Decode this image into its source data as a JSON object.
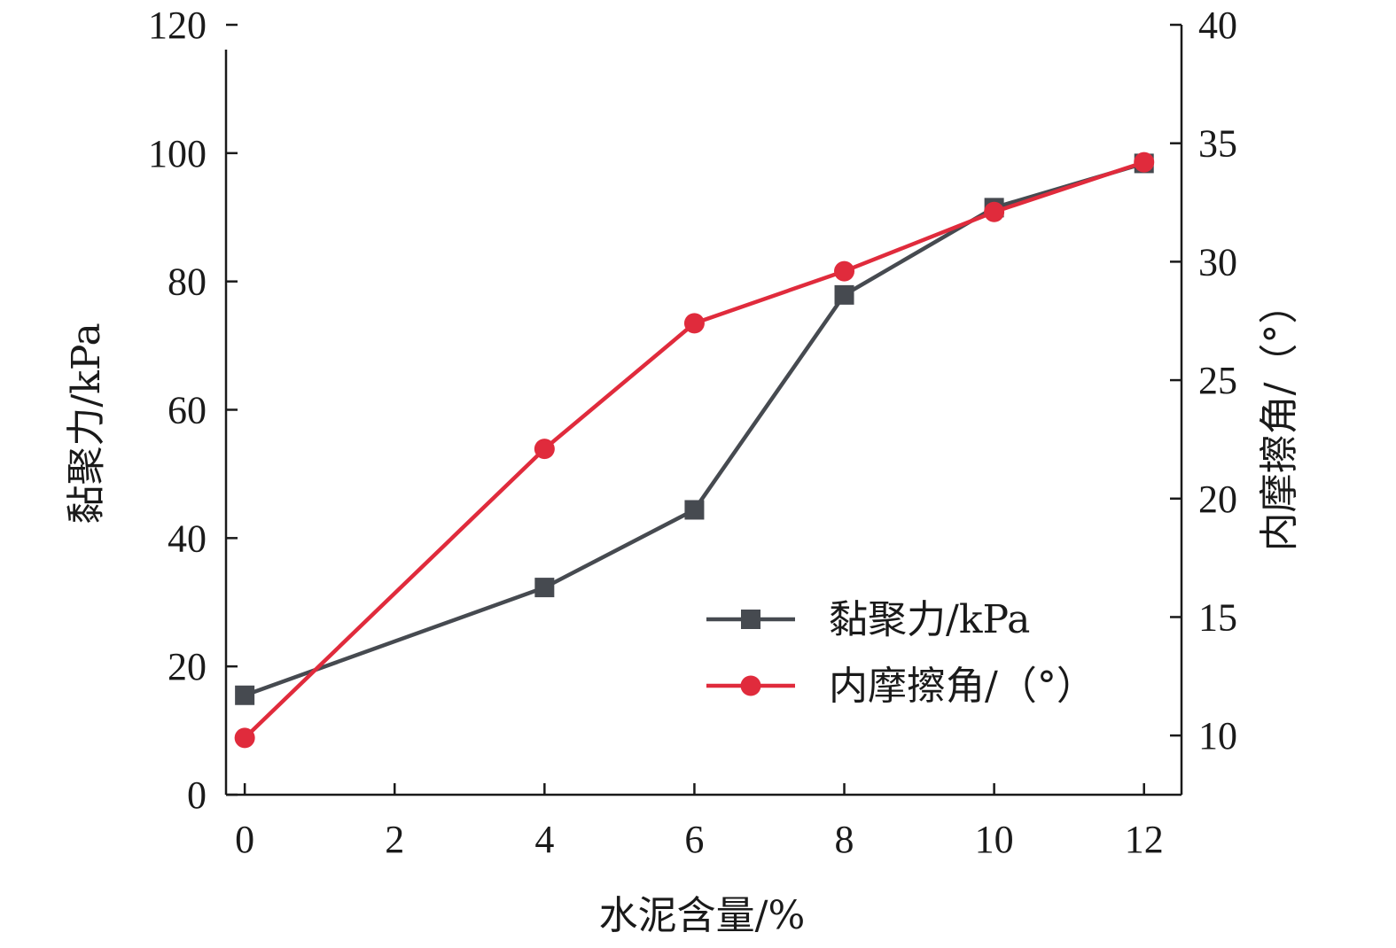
{
  "chart_data": {
    "type": "line",
    "x_axis": {
      "label": "水泥含量/%",
      "range": [
        -0.25,
        12.5
      ],
      "ticks": [
        0,
        2,
        4,
        6,
        8,
        10,
        12
      ],
      "tick_labels": [
        "0",
        "2",
        "4",
        "6",
        "8",
        "10",
        "12"
      ]
    },
    "y_axis_left": {
      "label": "黏聚力/kPa",
      "range": [
        0,
        120
      ],
      "ticks": [
        0,
        20,
        40,
        60,
        80,
        100,
        120
      ],
      "tick_labels": [
        "0",
        "20",
        "40",
        "60",
        "80",
        "100",
        "120"
      ]
    },
    "y_axis_right": {
      "label": "内摩擦角/（°）",
      "range": [
        7.5,
        40
      ],
      "ticks": [
        10,
        15,
        20,
        25,
        30,
        35,
        40
      ],
      "tick_labels": [
        "10",
        "15",
        "20",
        "25",
        "30",
        "35",
        "40"
      ]
    },
    "series": [
      {
        "name": "黏聚力/kPa",
        "axis": "left",
        "color": "#464a50",
        "marker": "square",
        "x": [
          0,
          4,
          6,
          8,
          10,
          12
        ],
        "y": [
          15.5,
          32.3,
          44.4,
          77.9,
          91.5,
          98.4
        ]
      },
      {
        "name": "内摩擦角/（°）",
        "axis": "right",
        "color": "#e02b3c",
        "marker": "circle",
        "x": [
          0,
          4,
          6,
          8,
          10,
          12
        ],
        "y": [
          9.9,
          22.1,
          27.4,
          29.6,
          32.1,
          34.2
        ]
      }
    ],
    "legend": {
      "position": "lower-right",
      "entries": [
        "黏聚力/kPa",
        "内摩擦角/（°）"
      ]
    },
    "grid": false
  }
}
